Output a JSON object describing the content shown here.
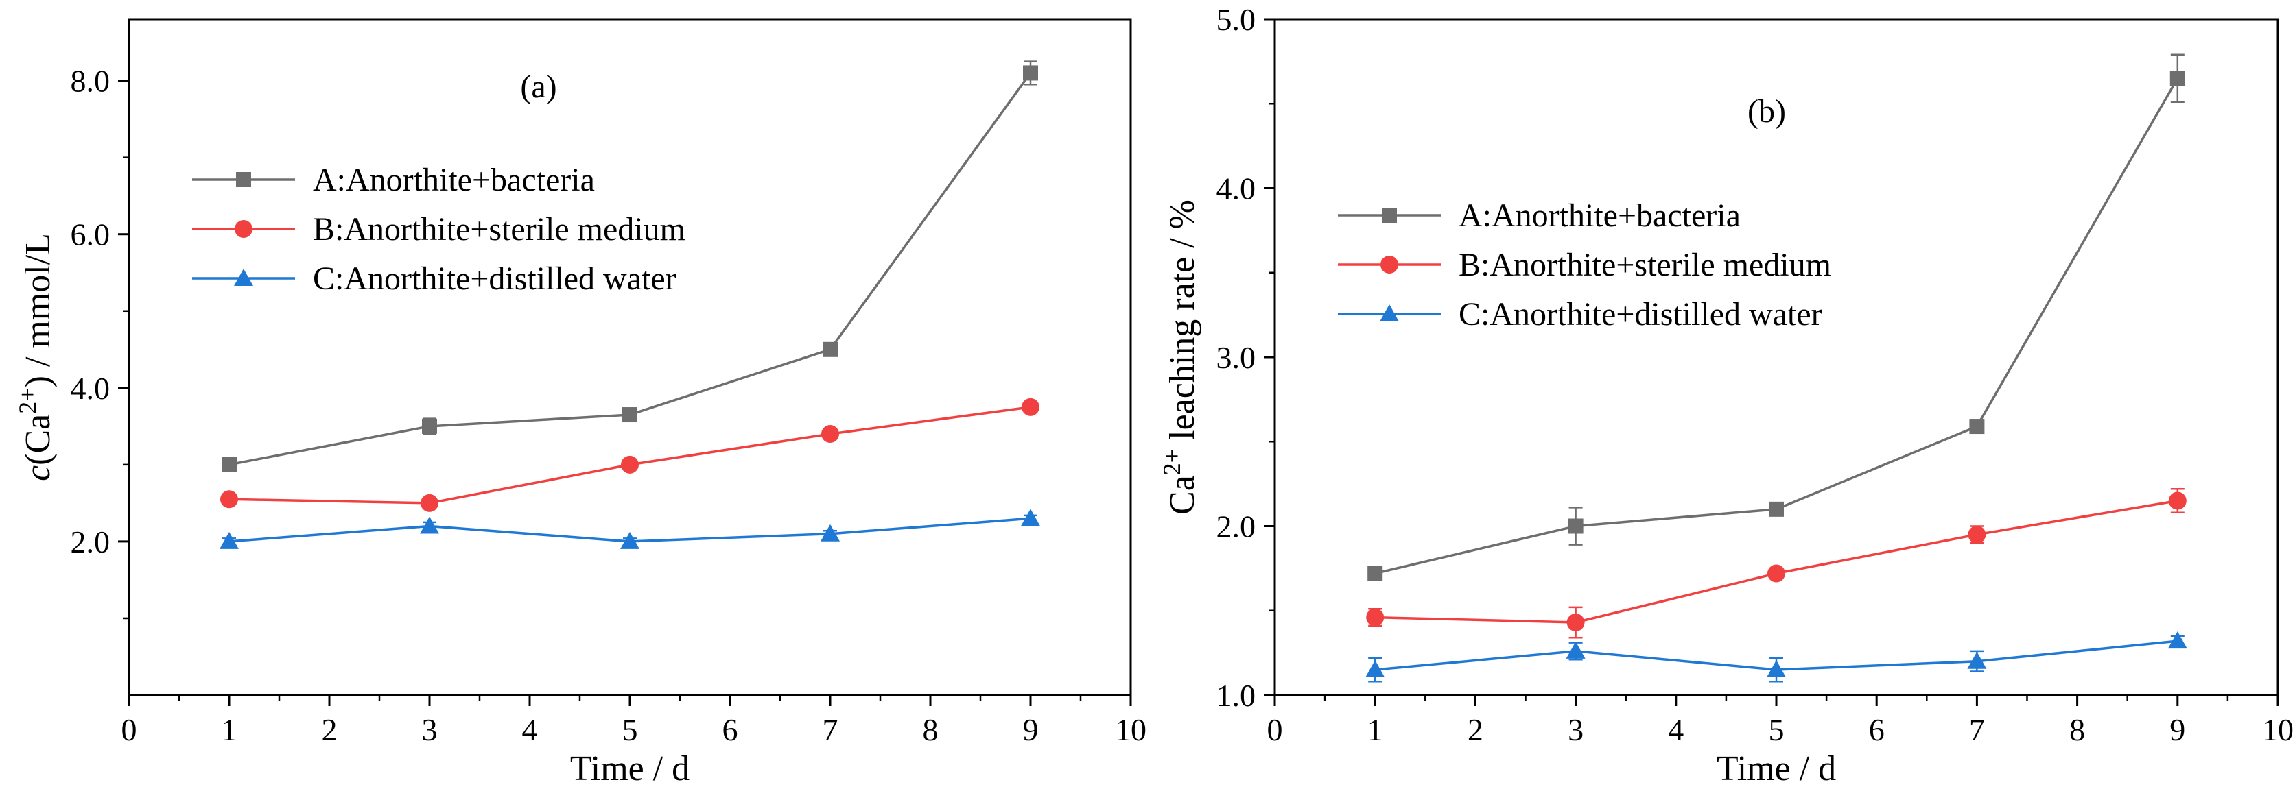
{
  "chart_data": [
    {
      "type": "line",
      "panel_label": "(a)",
      "xlabel": "Time / d",
      "ylabel_parts": {
        "italic": "c",
        "open": "(Ca",
        "sup": "2+",
        "close": ") / mmol/L"
      },
      "xlim": [
        0,
        10
      ],
      "ylim": [
        0.0,
        8.8
      ],
      "xticks": [
        0,
        1,
        2,
        3,
        4,
        5,
        6,
        7,
        8,
        9,
        10
      ],
      "xtick_labels": [
        "0",
        "1",
        "2",
        "3",
        "4",
        "5",
        "6",
        "7",
        "8",
        "9",
        "10"
      ],
      "yticks": [
        2.0,
        4.0,
        6.0,
        8.0
      ],
      "ytick_labels": [
        "2.0",
        "4.0",
        "6.0",
        "8.0"
      ],
      "legend_position": "upper-left",
      "series": [
        {
          "name": "A:Anorthite+bacteria",
          "marker": "square",
          "color": "#6e6e6e",
          "x": [
            1,
            3,
            5,
            7,
            9
          ],
          "y": [
            3.0,
            3.5,
            3.65,
            4.5,
            8.1
          ],
          "err": [
            0.05,
            0.1,
            0.05,
            0.05,
            0.15
          ]
        },
        {
          "name": "B:Anorthite+sterile medium",
          "marker": "circle",
          "color": "#f04040",
          "x": [
            1,
            3,
            5,
            7,
            9
          ],
          "y": [
            2.55,
            2.5,
            3.0,
            3.4,
            3.75
          ],
          "err": [
            0.04,
            0.05,
            0.03,
            0.04,
            0.04
          ]
        },
        {
          "name": "C:Anorthite+distilled water",
          "marker": "triangle",
          "color": "#1f78d4",
          "x": [
            1,
            3,
            5,
            7,
            9
          ],
          "y": [
            2.0,
            2.2,
            2.0,
            2.1,
            2.3
          ],
          "err": [
            0.04,
            0.05,
            0.04,
            0.04,
            0.04
          ]
        }
      ]
    },
    {
      "type": "line",
      "panel_label": "(b)",
      "xlabel": "Time / d",
      "ylabel_parts": {
        "italic": "",
        "open": "Ca",
        "sup": "2+",
        "close": " leaching rate / %"
      },
      "xlim": [
        0,
        10
      ],
      "ylim": [
        1.0,
        5.0
      ],
      "xticks": [
        0,
        1,
        2,
        3,
        4,
        5,
        6,
        7,
        8,
        9,
        10
      ],
      "xtick_labels": [
        "0",
        "1",
        "2",
        "3",
        "4",
        "5",
        "6",
        "7",
        "8",
        "9",
        "10"
      ],
      "yticks": [
        1.0,
        2.0,
        3.0,
        4.0,
        5.0
      ],
      "ytick_labels": [
        "1.0",
        "2.0",
        "3.0",
        "4.0",
        "5.0"
      ],
      "legend_position": "upper-left",
      "series": [
        {
          "name": "A:Anorthite+bacteria",
          "marker": "square",
          "color": "#6e6e6e",
          "x": [
            1,
            3,
            5,
            7,
            9
          ],
          "y": [
            1.72,
            2.0,
            2.1,
            2.59,
            4.65
          ],
          "err": [
            0.03,
            0.11,
            0.03,
            0.03,
            0.14
          ]
        },
        {
          "name": "B:Anorthite+sterile medium",
          "marker": "circle",
          "color": "#f04040",
          "x": [
            1,
            3,
            5,
            7,
            9
          ],
          "y": [
            1.46,
            1.43,
            1.72,
            1.95,
            2.15
          ],
          "err": [
            0.05,
            0.09,
            0.03,
            0.05,
            0.07
          ]
        },
        {
          "name": "C:Anorthite+distilled water",
          "marker": "triangle",
          "color": "#1f78d4",
          "x": [
            1,
            3,
            5,
            7,
            9
          ],
          "y": [
            1.15,
            1.26,
            1.15,
            1.2,
            1.32
          ],
          "err": [
            0.07,
            0.05,
            0.07,
            0.06,
            0.03
          ]
        }
      ]
    }
  ]
}
